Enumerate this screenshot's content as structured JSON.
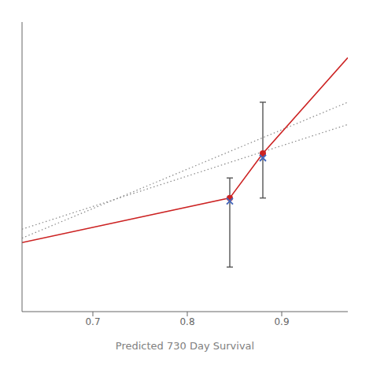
{
  "chart_data": {
    "type": "line",
    "xlabel": "Predicted  730 Day Survival",
    "xlim": [
      0.625,
      0.97
    ],
    "xticks": [
      0.7,
      0.8,
      0.9
    ],
    "ylim": [
      0.4,
      1.05
    ],
    "tick_labels": "x",
    "series": [
      {
        "type": "line",
        "color": "#888888",
        "line_style": "dotted",
        "x": [
          0.625,
          0.97
        ],
        "values": [
          0.585,
          0.82
        ]
      },
      {
        "type": "line",
        "color": "#888888",
        "line_style": "dotted",
        "x": [
          0.625,
          0.97
        ],
        "values": [
          0.565,
          0.87
        ]
      },
      {
        "type": "line",
        "color": "#cc2222",
        "line_style": "solid",
        "x": [
          0.625,
          0.845,
          0.88,
          0.97
        ],
        "values": [
          0.555,
          0.655,
          0.755,
          0.97
        ]
      },
      {
        "type": "errorbar",
        "color": "#555555",
        "x": [
          0.845,
          0.88
        ],
        "low": [
          0.5,
          0.655
        ],
        "high": [
          0.7,
          0.87
        ]
      },
      {
        "type": "scatter",
        "color": "#cc2222",
        "marker": "circle",
        "x": [
          0.845,
          0.88
        ],
        "values": [
          0.655,
          0.755
        ]
      },
      {
        "type": "scatter",
        "color": "#4466bb",
        "marker": "x",
        "x": [
          0.845,
          0.88
        ],
        "values": [
          0.648,
          0.745
        ]
      }
    ]
  }
}
